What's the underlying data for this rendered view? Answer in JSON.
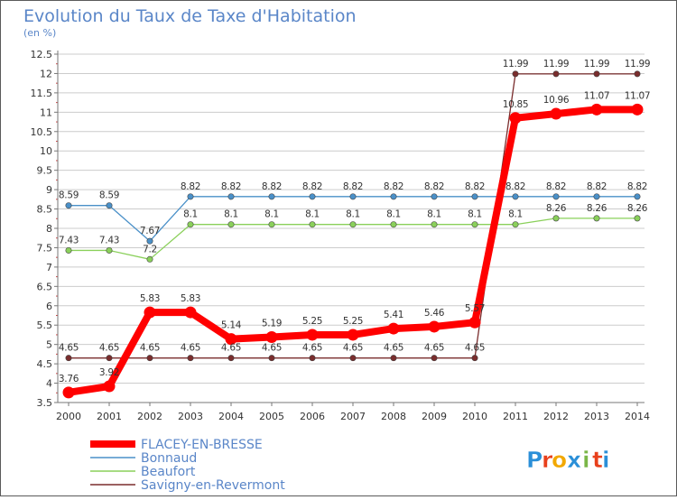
{
  "chart_data": {
    "type": "line",
    "title": "Evolution du Taux de Taxe d'Habitation",
    "subtitle": "(en %)",
    "xlabel": "",
    "ylabel": "",
    "x": [
      "2000",
      "2001",
      "2002",
      "2003",
      "2004",
      "2005",
      "2006",
      "2007",
      "2008",
      "2009",
      "2010",
      "2011",
      "2012",
      "2013",
      "2014"
    ],
    "ylim": [
      3.5,
      12.5
    ],
    "yticks": [
      "3.5",
      "4",
      "4.5",
      "5",
      "5.5",
      "6",
      "6.5",
      "7",
      "7.5",
      "8",
      "8.5",
      "9",
      "9.5",
      "10",
      "10.5",
      "11",
      "11.5",
      "12",
      "12.5"
    ],
    "grid": "horizontal",
    "legend_position": "bottom-left",
    "series": [
      {
        "name": "FLACEY-EN-BRESSE",
        "color": "#ff0000",
        "values": [
          3.76,
          3.92,
          5.83,
          5.83,
          5.14,
          5.19,
          5.25,
          5.25,
          5.41,
          5.46,
          5.57,
          10.85,
          10.96,
          11.07,
          11.07
        ],
        "labels": [
          "3.76",
          "3.92",
          "5.83",
          "5.83",
          "5.14",
          "5.19",
          "5.25",
          "5.25",
          "5.41",
          "5.46",
          "5.57",
          "10.85",
          "10.96",
          "11.07",
          "11.07"
        ]
      },
      {
        "name": "Bonnaud",
        "color": "#4a90c8",
        "values": [
          8.59,
          8.59,
          7.67,
          8.82,
          8.82,
          8.82,
          8.82,
          8.82,
          8.82,
          8.82,
          8.82,
          8.82,
          8.82,
          8.82,
          8.82
        ],
        "labels": [
          "8.59",
          "8.59",
          "7.67",
          "8.82",
          "8.82",
          "8.82",
          "8.82",
          "8.82",
          "8.82",
          "8.82",
          "8.82",
          "8.82",
          "8.82",
          "8.82",
          "8.82"
        ]
      },
      {
        "name": "Beaufort",
        "color": "#8ad05a",
        "values": [
          7.43,
          7.43,
          7.2,
          8.1,
          8.1,
          8.1,
          8.1,
          8.1,
          8.1,
          8.1,
          8.1,
          8.1,
          8.26,
          8.26,
          8.26
        ],
        "labels": [
          "7.43",
          "7.43",
          "7.2",
          "8.1",
          "8.1",
          "8.1",
          "8.1",
          "8.1",
          "8.1",
          "8.1",
          "8.1",
          "8.1",
          "8.26",
          "8.26",
          "8.26"
        ]
      },
      {
        "name": "Savigny-en-Revermont",
        "color": "#7a2d2d",
        "values": [
          4.65,
          4.65,
          4.65,
          4.65,
          4.65,
          4.65,
          4.65,
          4.65,
          4.65,
          4.65,
          4.65,
          11.99,
          11.99,
          11.99,
          11.99
        ],
        "labels": [
          "4.65",
          "4.65",
          "4.65",
          "4.65",
          "4.65",
          "4.65",
          "4.65",
          "4.65",
          "4.65",
          "4.65",
          "4.65",
          "11.99",
          "11.99",
          "11.99",
          "11.99"
        ]
      }
    ]
  },
  "branding": {
    "logo_text": "Proxiti",
    "logo_letters": [
      "P",
      "r",
      "o",
      "x",
      "i",
      "t",
      "i"
    ],
    "logo_colors": [
      "#2a8fd8",
      "#e8401c",
      "#f2a800",
      "#2a8fd8",
      "#7ab648",
      "#e8401c",
      "#2a8fd8"
    ]
  },
  "colors": {
    "background": "#ffffff",
    "border": "#5a5a5a",
    "title": "#5a86c8",
    "text": "#333333",
    "grid": "#cccccc",
    "legend_text": "#5a86c8"
  }
}
